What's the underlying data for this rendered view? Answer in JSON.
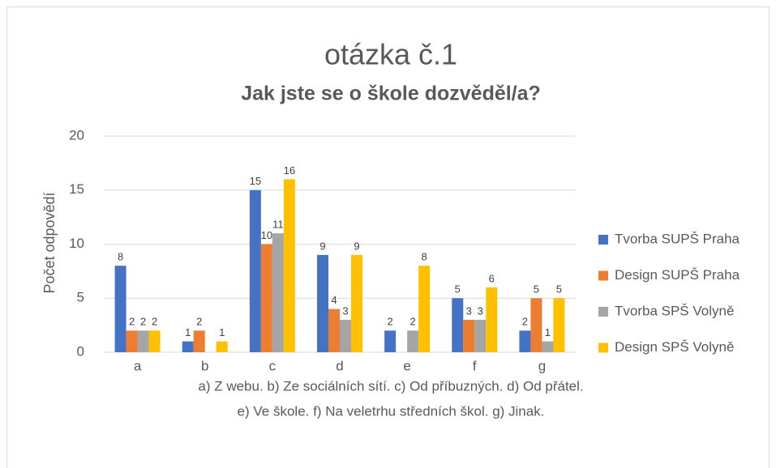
{
  "chart_data": {
    "type": "bar",
    "title": "otázka č.1",
    "subtitle": "Jak jste se o škole dozvěděl/a?",
    "ylabel": "Počet odpovědí",
    "xlabel": [
      "a) Z webu. b) Ze sociálních sítí. c) Od příbuzných. d) Od přátel.",
      "e) Ve škole. f) Na veletrhu středních škol. g) Jinak."
    ],
    "categories": [
      "a",
      "b",
      "c",
      "d",
      "e",
      "f",
      "g"
    ],
    "series": [
      {
        "name": "Tvorba SUPŠ Praha",
        "color": "#4472c4",
        "values": [
          8,
          1,
          15,
          9,
          2,
          5,
          2
        ]
      },
      {
        "name": "Design SUPŠ Praha",
        "color": "#ed7d31",
        "values": [
          2,
          2,
          10,
          4,
          null,
          3,
          5
        ]
      },
      {
        "name": "Tvorba SPŠ Volyně",
        "color": "#a5a5a5",
        "values": [
          2,
          null,
          11,
          3,
          2,
          3,
          1
        ]
      },
      {
        "name": "Design SPŠ Volyně",
        "color": "#ffc000",
        "values": [
          2,
          1,
          16,
          9,
          8,
          6,
          5
        ]
      }
    ],
    "ylim": [
      0,
      20
    ],
    "yticks": [
      0,
      5,
      10,
      15,
      20
    ],
    "grid": true,
    "legend": "right"
  }
}
